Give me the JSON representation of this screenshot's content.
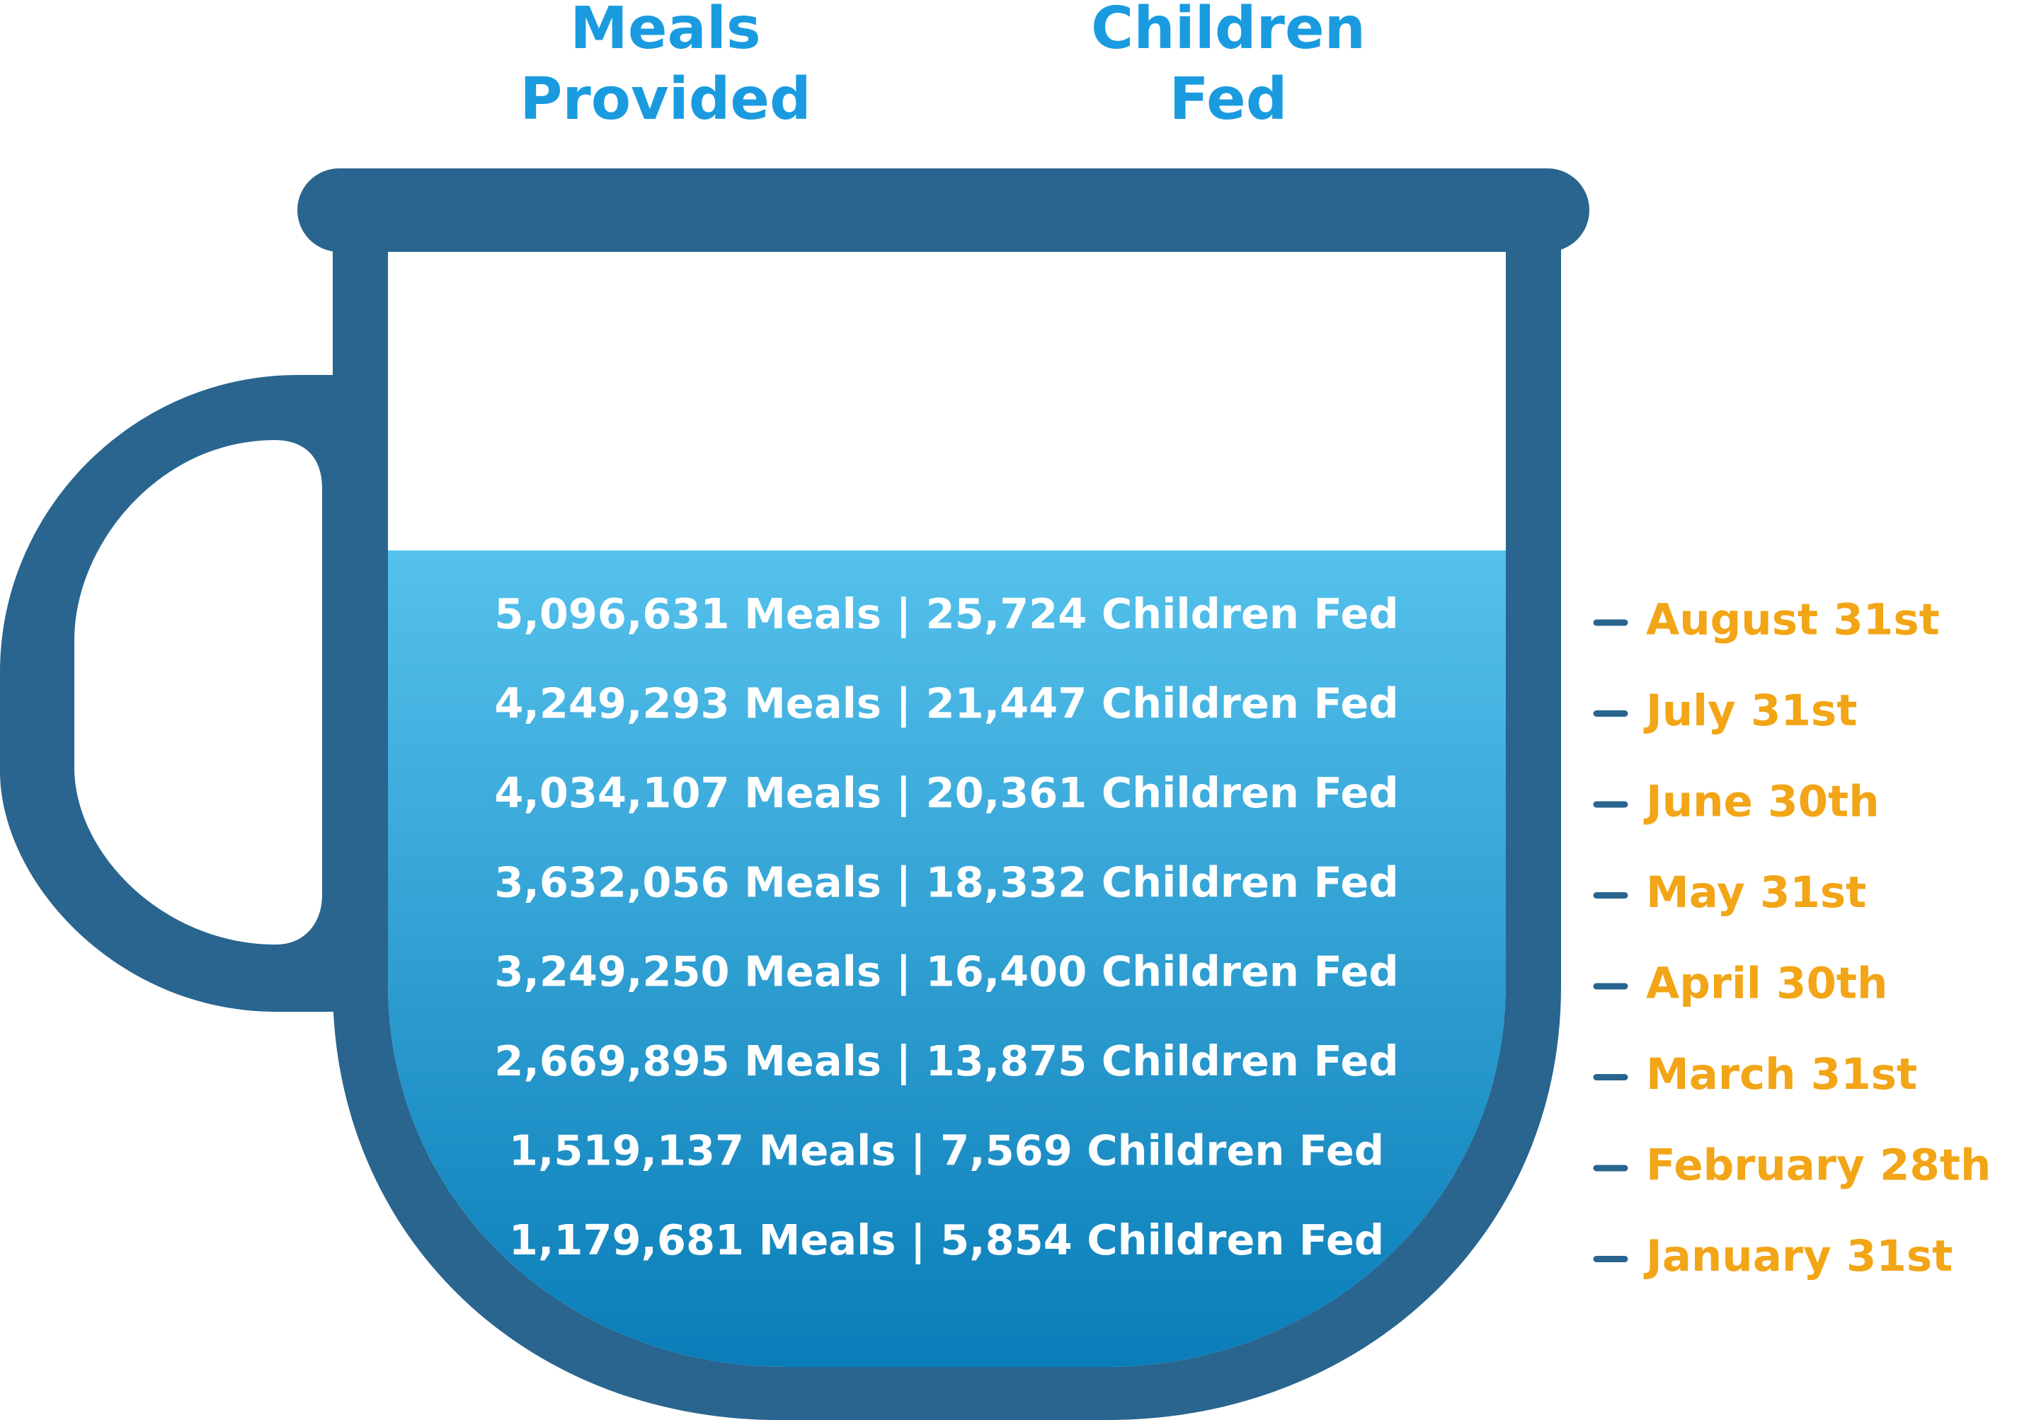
{
  "colors": {
    "header_text": "#1a9be0",
    "mug": "#29658f",
    "liquid_top": "#55c1ec",
    "liquid_bottom": "#0a7db8",
    "row_text": "#ffffff",
    "date_text": "#f2a516",
    "tick": "#29658f"
  },
  "headers": {
    "meals": [
      "Meals",
      "Provided"
    ],
    "children": [
      "Children",
      "Fed"
    ]
  },
  "chart_data": {
    "type": "table",
    "series": [
      {
        "name": "Meals Provided",
        "unit": "Meals"
      },
      {
        "name": "Children Fed",
        "unit": "Children Fed"
      }
    ],
    "rows": [
      {
        "date": "August 31st",
        "meals": "5,096,631",
        "children": "25,724",
        "text": "5,096,631 Meals | 25,724 Children Fed"
      },
      {
        "date": "July 31st",
        "meals": "4,249,293",
        "children": "21,447",
        "text": "4,249,293 Meals | 21,447 Children Fed"
      },
      {
        "date": "June 30th",
        "meals": "4,034,107",
        "children": "20,361",
        "text": "4,034,107 Meals | 20,361 Children Fed"
      },
      {
        "date": "May 31st",
        "meals": "3,632,056",
        "children": "18,332",
        "text": "3,632,056 Meals | 18,332 Children Fed"
      },
      {
        "date": "April 30th",
        "meals": "3,249,250",
        "children": "16,400",
        "text": "3,249,250 Meals | 16,400 Children Fed"
      },
      {
        "date": "March 31st",
        "meals": "2,669,895",
        "children": "13,875",
        "text": "2,669,895 Meals | 13,875 Children Fed"
      },
      {
        "date": "February 28th",
        "meals": "1,519,137",
        "children": "7,569",
        "text": "1,519,137 Meals | 7,569 Children Fed"
      },
      {
        "date": "January 31st",
        "meals": "1,179,681",
        "children": "5,854",
        "text": "1,179,681 Meals | 5,854 Children Fed"
      }
    ]
  }
}
